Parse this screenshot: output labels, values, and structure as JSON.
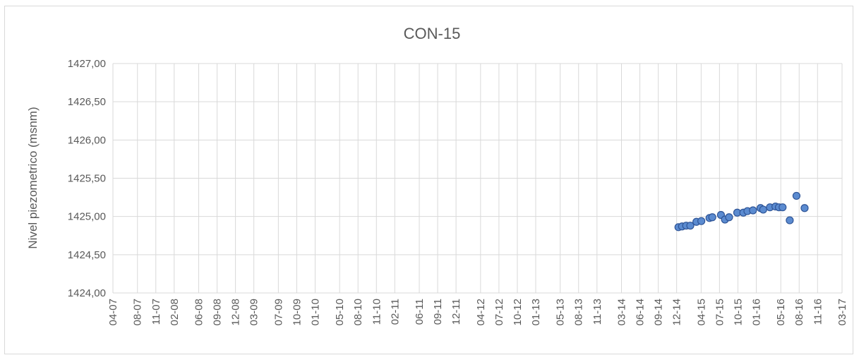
{
  "chart_data": {
    "type": "scatter",
    "title": "CON-15",
    "xlabel": "",
    "ylabel": "Nivel piezometrico (msnm)",
    "x_tick_labels": [
      "04-07",
      "08-07",
      "11-07",
      "02-08",
      "06-08",
      "09-08",
      "12-08",
      "03-09",
      "07-09",
      "10-09",
      "01-10",
      "05-10",
      "08-10",
      "11-10",
      "02-11",
      "06-11",
      "09-11",
      "12-11",
      "04-12",
      "07-12",
      "10-12",
      "01-13",
      "05-13",
      "08-13",
      "11-13",
      "03-14",
      "06-14",
      "09-14",
      "12-14",
      "04-15",
      "07-15",
      "10-15",
      "01-16",
      "05-16",
      "08-16",
      "11-16",
      "03-17"
    ],
    "y_tick_labels": [
      "1424,00",
      "1424,50",
      "1425,00",
      "1425,50",
      "1426,00",
      "1426,50",
      "1427,00"
    ],
    "ylim": [
      1424.0,
      1427.0
    ],
    "grid": true,
    "legend": "none",
    "marker_color": "#5b8bd0",
    "marker_edge_color": "#2f5597",
    "series": [
      {
        "points": [
          {
            "x": "2014-12-10",
            "y": 1424.86
          },
          {
            "x": "2014-12-28",
            "y": 1424.87
          },
          {
            "x": "2015-01-18",
            "y": 1424.88
          },
          {
            "x": "2015-02-08",
            "y": 1424.88
          },
          {
            "x": "2015-03-08",
            "y": 1424.93
          },
          {
            "x": "2015-04-02",
            "y": 1424.94
          },
          {
            "x": "2015-05-12",
            "y": 1424.98
          },
          {
            "x": "2015-05-26",
            "y": 1424.99
          },
          {
            "x": "2015-07-08",
            "y": 1425.02
          },
          {
            "x": "2015-07-28",
            "y": 1424.96
          },
          {
            "x": "2015-08-18",
            "y": 1424.99
          },
          {
            "x": "2015-09-28",
            "y": 1425.05
          },
          {
            "x": "2015-10-28",
            "y": 1425.05
          },
          {
            "x": "2015-11-18",
            "y": 1425.07
          },
          {
            "x": "2015-12-15",
            "y": 1425.08
          },
          {
            "x": "2016-01-22",
            "y": 1425.11
          },
          {
            "x": "2016-02-05",
            "y": 1425.09
          },
          {
            "x": "2016-03-08",
            "y": 1425.12
          },
          {
            "x": "2016-04-05",
            "y": 1425.13
          },
          {
            "x": "2016-04-22",
            "y": 1425.12
          },
          {
            "x": "2016-05-10",
            "y": 1425.12
          },
          {
            "x": "2016-06-15",
            "y": 1424.95
          },
          {
            "x": "2016-07-18",
            "y": 1425.27
          },
          {
            "x": "2016-08-28",
            "y": 1425.11
          }
        ]
      }
    ]
  }
}
